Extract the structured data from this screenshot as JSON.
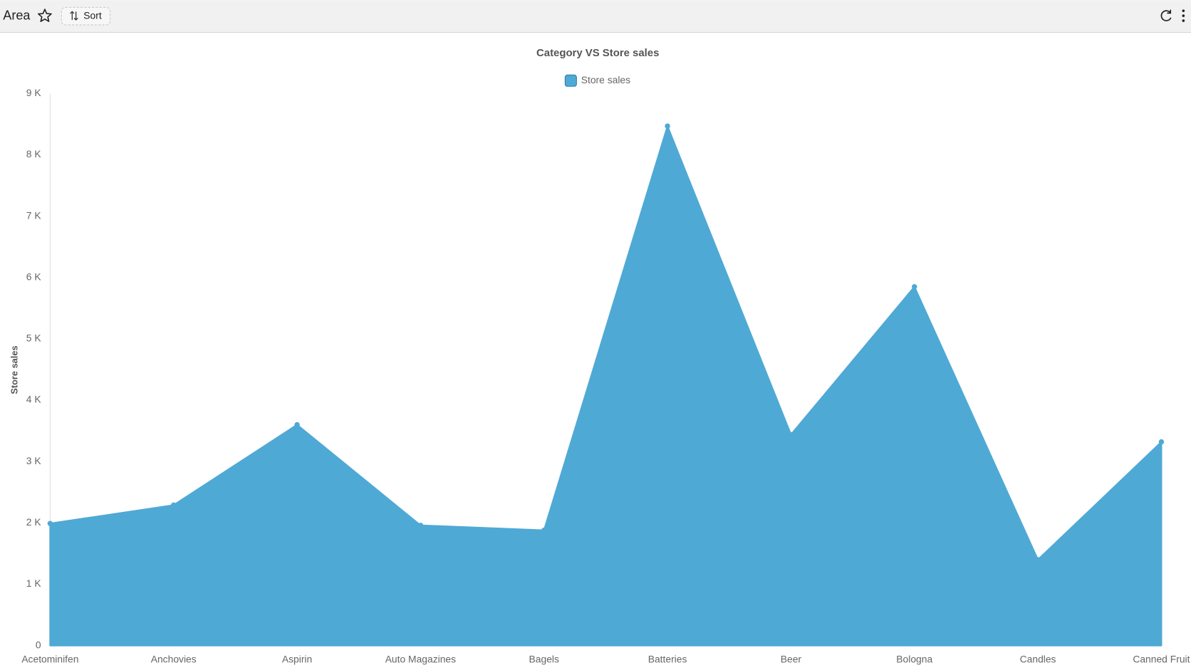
{
  "header": {
    "title": "Area",
    "sort_button": "Sort"
  },
  "chart_data": {
    "type": "area",
    "title": "Category VS Store sales",
    "y_label": "Store sales",
    "categories": [
      "Acetominifen",
      "Anchovies",
      "Aspirin",
      "Auto Magazines",
      "Bagels",
      "Batteries",
      "Beer",
      "Bologna",
      "Candles",
      "Canned Fruit"
    ],
    "series": [
      {
        "name": "Store sales",
        "color": "#4fa9d5",
        "values": [
          1990,
          2290,
          3600,
          1960,
          1880,
          8470,
          3440,
          5850,
          1400,
          3320
        ]
      }
    ],
    "ylim": [
      0,
      9000
    ],
    "yticks": [
      0,
      {
        "value": 1000,
        "label": "1 K"
      },
      {
        "value": 2000,
        "label": "2 K"
      },
      {
        "value": 3000,
        "label": "3 K"
      },
      {
        "value": 4000,
        "label": "4 K"
      },
      {
        "value": 5000,
        "label": "5 K"
      },
      {
        "value": 6000,
        "label": "6 K"
      },
      {
        "value": 7000,
        "label": "7 K"
      },
      {
        "value": 8000,
        "label": "8 K"
      },
      {
        "value": 9000,
        "label": "9 K"
      }
    ],
    "grid": false,
    "legend": "top"
  }
}
